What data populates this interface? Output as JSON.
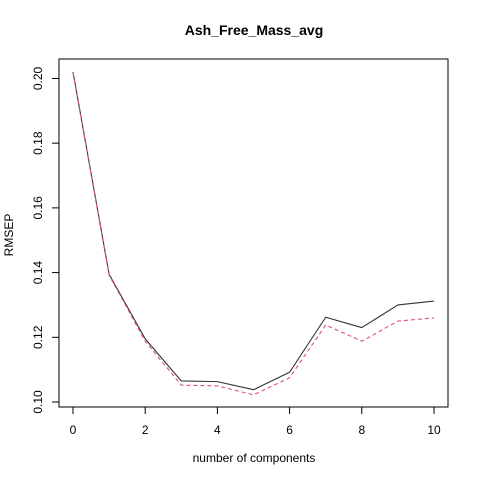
{
  "chart_data": {
    "type": "line",
    "title": "Ash_Free_Mass_avg",
    "xlabel": "number of components",
    "ylabel": "RMSEP",
    "xlim": [
      0,
      10
    ],
    "ylim": [
      0.1,
      0.202
    ],
    "x_ticks": [
      0,
      2,
      4,
      6,
      8,
      10
    ],
    "y_ticks": [
      0.1,
      0.12,
      0.14,
      0.16,
      0.18,
      0.2
    ],
    "y_tick_labels": [
      "0.10",
      "0.12",
      "0.14",
      "0.16",
      "0.18",
      "0.20"
    ],
    "legend": "none",
    "grid": false,
    "x": [
      0,
      1,
      2,
      3,
      4,
      5,
      6,
      7,
      8,
      9,
      10
    ],
    "series": [
      {
        "values": [
          0.202,
          0.1395,
          0.1195,
          0.1065,
          0.1063,
          0.1038,
          0.1092,
          0.1262,
          0.123,
          0.13,
          0.1312
        ],
        "color": "#333333",
        "style": "solid"
      },
      {
        "values": [
          0.2018,
          0.1392,
          0.1188,
          0.1052,
          0.105,
          0.1022,
          0.1075,
          0.1238,
          0.1188,
          0.125,
          0.126
        ],
        "color": "#DF536B",
        "style": "dashed"
      }
    ]
  }
}
